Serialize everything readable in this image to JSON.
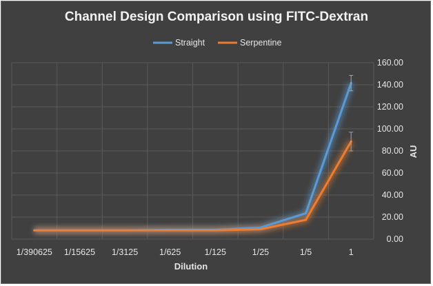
{
  "chart_data": {
    "type": "line",
    "title": "Channel Design Comparison using FITC-Dextran",
    "xlabel": "Dilution",
    "ylabel": "AU",
    "categories": [
      "1/390625",
      "1/15625",
      "1/3125",
      "1/625",
      "1/125",
      "1/25",
      "1/5",
      "1"
    ],
    "y_tick_labels": [
      "0.00",
      "20.00",
      "40.00",
      "60.00",
      "80.00",
      "100.00",
      "120.00",
      "140.00",
      "160.00"
    ],
    "ylim": [
      0,
      160
    ],
    "y_axis_position": "right",
    "grid": true,
    "legend_position": "top",
    "series": [
      {
        "name": "Straight",
        "color": "#5b9bd5",
        "values": [
          8.0,
          8.0,
          8.0,
          8.5,
          8.5,
          10.5,
          23.5,
          141.5
        ],
        "error": [
          0,
          0,
          0,
          0,
          0,
          0,
          0,
          7
        ]
      },
      {
        "name": "Serpentine",
        "color": "#ed7d31",
        "values": [
          8.0,
          8.0,
          8.0,
          8.0,
          8.0,
          9.0,
          17.5,
          88.5
        ],
        "error": [
          0,
          0,
          0,
          0,
          0,
          0,
          0,
          8.5
        ]
      }
    ]
  }
}
